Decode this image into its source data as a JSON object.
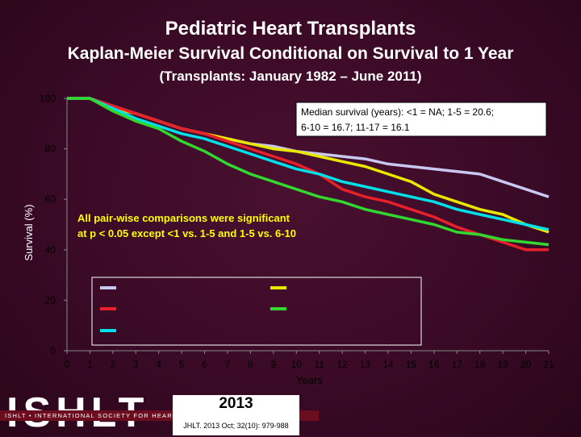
{
  "titles": {
    "main": "Pediatric Heart Transplants",
    "sub": "Kaplan-Meier Survival Conditional on Survival to 1 Year",
    "period": "(Transplants: January 1982 – June 2011)"
  },
  "chart_data": {
    "type": "line",
    "xlabel": "Years",
    "ylabel": "Survival (%)",
    "xlim": [
      0,
      21
    ],
    "ylim": [
      0,
      100
    ],
    "x_ticks": [
      0,
      1,
      2,
      3,
      4,
      5,
      6,
      7,
      8,
      9,
      10,
      11,
      12,
      13,
      14,
      15,
      16,
      17,
      18,
      19,
      20,
      21
    ],
    "y_ticks": [
      0,
      20,
      40,
      60,
      80,
      100
    ],
    "grid": false,
    "annotations": [
      "Median survival (years): <1 = NA; 1-5 = 20.6; 6-10 = 16.7; 11-17 = 16.1",
      "All pair-wise comparisons were significant at p < 0.05 except <1 vs. 1-5 and 1-5 vs. 6-10"
    ],
    "legend_placement": "bottom-center",
    "series": [
      {
        "color": "#c8c8f0",
        "x": [
          0,
          1,
          2,
          3,
          4,
          5,
          6,
          7,
          8,
          9,
          10,
          11,
          12,
          13,
          14,
          15,
          16,
          17,
          18,
          19,
          20,
          21
        ],
        "y": [
          100,
          100,
          97,
          94,
          91,
          88,
          86,
          84,
          82,
          81,
          79,
          78,
          77,
          76,
          74,
          73,
          72,
          71,
          70,
          67,
          64,
          61
        ]
      },
      {
        "color": "#e8e800",
        "x": [
          0,
          1,
          2,
          3,
          4,
          5,
          6,
          7,
          8,
          9,
          10,
          11,
          12,
          13,
          14,
          15,
          16,
          17,
          18,
          19,
          20,
          21
        ],
        "y": [
          100,
          100,
          96,
          94,
          91,
          88,
          86,
          84,
          82,
          80,
          79,
          77,
          75,
          73,
          70,
          67,
          62,
          59,
          56,
          54,
          50,
          47
        ]
      },
      {
        "color": "#e8202a",
        "x": [
          0,
          1,
          2,
          3,
          4,
          5,
          6,
          7,
          8,
          9,
          10,
          11,
          12,
          13,
          14,
          15,
          16,
          17,
          18,
          19,
          20,
          21
        ],
        "y": [
          100,
          100,
          97,
          94,
          91,
          88,
          86,
          83,
          80,
          77,
          74,
          70,
          64,
          61,
          59,
          56,
          53,
          49,
          46,
          43,
          40,
          40
        ]
      },
      {
        "color": "#00e0e8",
        "x": [
          0,
          1,
          2,
          3,
          4,
          5,
          6,
          7,
          8,
          9,
          10,
          11,
          12,
          13,
          14,
          15,
          16,
          17,
          18,
          19,
          20,
          21
        ],
        "y": [
          100,
          100,
          96,
          92,
          89,
          86,
          84,
          81,
          78,
          75,
          72,
          70,
          67,
          65,
          63,
          61,
          59,
          56,
          54,
          52,
          50,
          48
        ]
      },
      {
        "color": "#30d830",
        "x": [
          0,
          1,
          2,
          3,
          4,
          5,
          6,
          7,
          8,
          9,
          10,
          11,
          12,
          13,
          14,
          15,
          16,
          17,
          18,
          19,
          20,
          21
        ],
        "y": [
          100,
          100,
          95,
          91,
          88,
          83,
          79,
          74,
          70,
          67,
          64,
          61,
          59,
          56,
          54,
          52,
          50,
          47,
          46,
          44,
          43,
          42
        ]
      }
    ]
  },
  "logo": {
    "big": "ISHLT",
    "tagline": "ISHLT • INTERNATIONAL SOCIETY FOR HEART AND LUNG TRANSPLANTATION"
  },
  "citation": {
    "year": "2013",
    "ref": "JHLT. 2013 Oct; 32(10): 979-988"
  }
}
